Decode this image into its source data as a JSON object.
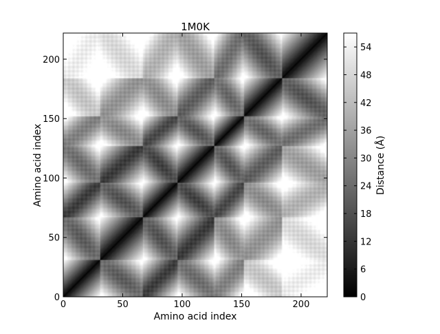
{
  "chart_data": {
    "type": "heatmap",
    "title": "1M0K",
    "xlabel": "Amino acid index",
    "ylabel": "Amino acid index",
    "x_range": [
      0,
      222
    ],
    "y_range": [
      0,
      222
    ],
    "x_ticks": [
      0,
      50,
      100,
      150,
      200
    ],
    "y_ticks": [
      0,
      50,
      100,
      150,
      200
    ],
    "grid": false,
    "colormap": "gray",
    "colorbar": {
      "label": "Distance (Å)",
      "range": [
        0,
        57
      ],
      "ticks": [
        0,
        6,
        12,
        18,
        24,
        30,
        36,
        42,
        48,
        54
      ]
    },
    "helix_segments": [
      [
        0,
        31
      ],
      [
        31,
        67
      ],
      [
        67,
        96
      ],
      [
        96,
        127
      ],
      [
        127,
        152
      ],
      [
        152,
        184
      ],
      [
        184,
        222
      ]
    ]
  }
}
